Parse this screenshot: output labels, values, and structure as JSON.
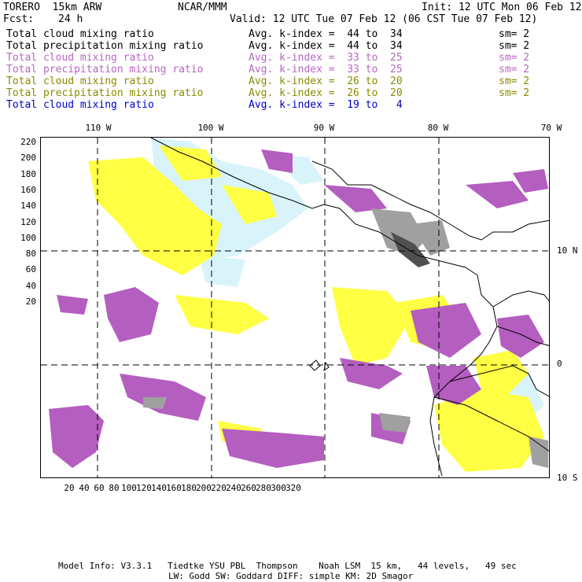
{
  "header": {
    "model": "TORERO  15km ARW",
    "center": "NCAR/MMM",
    "init": "Init: 12 UTC Mon 06 Feb 12",
    "fcst_label": "Fcst:",
    "fcst_value": "24 h",
    "valid": "Valid: 12 UTC Tue 07 Feb 12 (06 CST Tue 07 Feb 12)"
  },
  "legend": [
    {
      "field": "Total cloud mixing ratio",
      "index": "Avg. k-index =  44 to  34",
      "sm": "sm= 2",
      "color": "#000000"
    },
    {
      "field": "Total precipitation mixing ratio",
      "index": "Avg. k-index =  44 to  34",
      "sm": "sm= 2",
      "color": "#000000"
    },
    {
      "field": "Total cloud mixing ratio",
      "index": "Avg. k-index =  33 to  25",
      "sm": "sm= 2",
      "color": "#b766c4"
    },
    {
      "field": "Total precipitation mixing ratio",
      "index": "Avg. k-index =  33 to  25",
      "sm": "sm= 2",
      "color": "#b766c4"
    },
    {
      "field": "Total cloud mixing ratio",
      "index": "Avg. k-index =  26 to  20",
      "sm": "sm= 2",
      "color": "#8a8a00"
    },
    {
      "field": "Total precipitation mixing ratio",
      "index": "Avg. k-index =  26 to  20",
      "sm": "sm= 2",
      "color": "#8a8a00"
    },
    {
      "field": "Total cloud mixing ratio",
      "index": "Avg. k-index =  19 to   4",
      "sm": "",
      "color": "#0000cc"
    }
  ],
  "map": {
    "lon_labels": [
      "110 W",
      "100 W",
      "90 W",
      "80 W",
      "70 W"
    ],
    "lat_labels": [
      "10 N",
      "0",
      "10 S"
    ],
    "y_ticks": [
      "220",
      "200",
      "180",
      "160",
      "140",
      "120",
      "100",
      "80",
      "60",
      "40",
      "20"
    ],
    "x_ticks": [
      "20",
      "40",
      "60",
      "80",
      "100",
      "120",
      "140",
      "160",
      "180",
      "200",
      "220",
      "240",
      "260",
      "280",
      "300",
      "320"
    ],
    "colors": {
      "purple": "#b45ec0",
      "yellow": "#ffff44",
      "lightblue": "#d8f4fa",
      "gray": "#a0a0a0",
      "darkgray": "#505050"
    }
  },
  "footer": {
    "line1": "Model Info: V3.3.1   Tiedtke YSU PBL  Thompson    Noah LSM  15 km,   44 levels,   49 sec",
    "line2": "LW: Godd SW: Goddard DIFF: simple KM: 2D Smagor"
  }
}
